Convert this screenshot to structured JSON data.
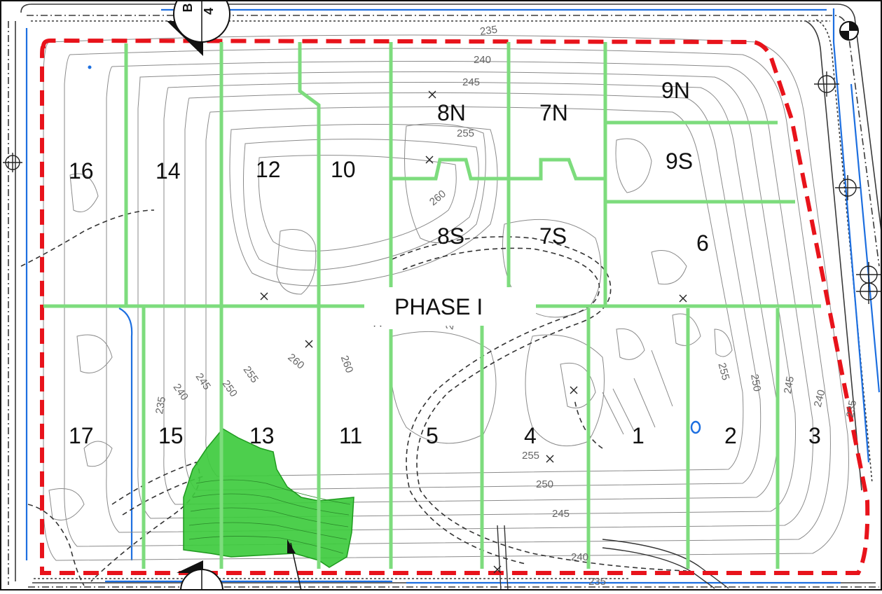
{
  "map": {
    "phase_label": "PHASE I",
    "cells": [
      {
        "id": "cell-16",
        "label": "16"
      },
      {
        "id": "cell-14",
        "label": "14"
      },
      {
        "id": "cell-12",
        "label": "12"
      },
      {
        "id": "cell-10",
        "label": "10"
      },
      {
        "id": "cell-8n",
        "label": "8N"
      },
      {
        "id": "cell-7n",
        "label": "7N"
      },
      {
        "id": "cell-9n",
        "label": "9N"
      },
      {
        "id": "cell-9s",
        "label": "9S"
      },
      {
        "id": "cell-8s",
        "label": "8S"
      },
      {
        "id": "cell-7s",
        "label": "7S"
      },
      {
        "id": "cell-6",
        "label": "6"
      },
      {
        "id": "cell-17",
        "label": "17"
      },
      {
        "id": "cell-15",
        "label": "15"
      },
      {
        "id": "cell-13",
        "label": "13"
      },
      {
        "id": "cell-11",
        "label": "11"
      },
      {
        "id": "cell-5",
        "label": "5"
      },
      {
        "id": "cell-4",
        "label": "4"
      },
      {
        "id": "cell-1",
        "label": "1"
      },
      {
        "id": "cell-2",
        "label": "2"
      },
      {
        "id": "cell-3",
        "label": "3"
      }
    ],
    "contour_labels": [
      {
        "id": "c240-top",
        "label": "240"
      },
      {
        "id": "c245-top",
        "label": "245"
      },
      {
        "id": "c235-top",
        "label": "235"
      },
      {
        "id": "c255-8n",
        "label": "255"
      },
      {
        "id": "c260-8s",
        "label": "260"
      },
      {
        "id": "c260-mid",
        "label": "260"
      },
      {
        "id": "c260-left",
        "label": "260"
      },
      {
        "id": "c260-center",
        "label": "260"
      },
      {
        "id": "c235-left",
        "label": "235"
      },
      {
        "id": "c240-left",
        "label": "240"
      },
      {
        "id": "c245-left",
        "label": "245"
      },
      {
        "id": "c250-left",
        "label": "250"
      },
      {
        "id": "c255-left",
        "label": "255"
      },
      {
        "id": "c255-right",
        "label": "255"
      },
      {
        "id": "c250-right",
        "label": "250"
      },
      {
        "id": "c245-right",
        "label": "245"
      },
      {
        "id": "c240-right",
        "label": "240"
      },
      {
        "id": "c235-right",
        "label": "235"
      },
      {
        "id": "c255-bottom",
        "label": "255"
      },
      {
        "id": "c250-bottom",
        "label": "250"
      },
      {
        "id": "c245-bottom",
        "label": "245"
      },
      {
        "id": "c240-bottom",
        "label": "240"
      },
      {
        "id": "c235-bottom",
        "label": "235"
      }
    ],
    "section_markers": [
      {
        "id": "marker-top",
        "letter": "B",
        "number": "4"
      },
      {
        "id": "marker-bottom",
        "letter": "",
        "number": ""
      }
    ],
    "colors": {
      "boundary": "#e8131b",
      "cell_divider": "#7ddc7d",
      "highlight_fill": "#3ecb3e",
      "contour": "#8a8a8a",
      "water": "#1d6fe0",
      "road": "#333333"
    }
  }
}
